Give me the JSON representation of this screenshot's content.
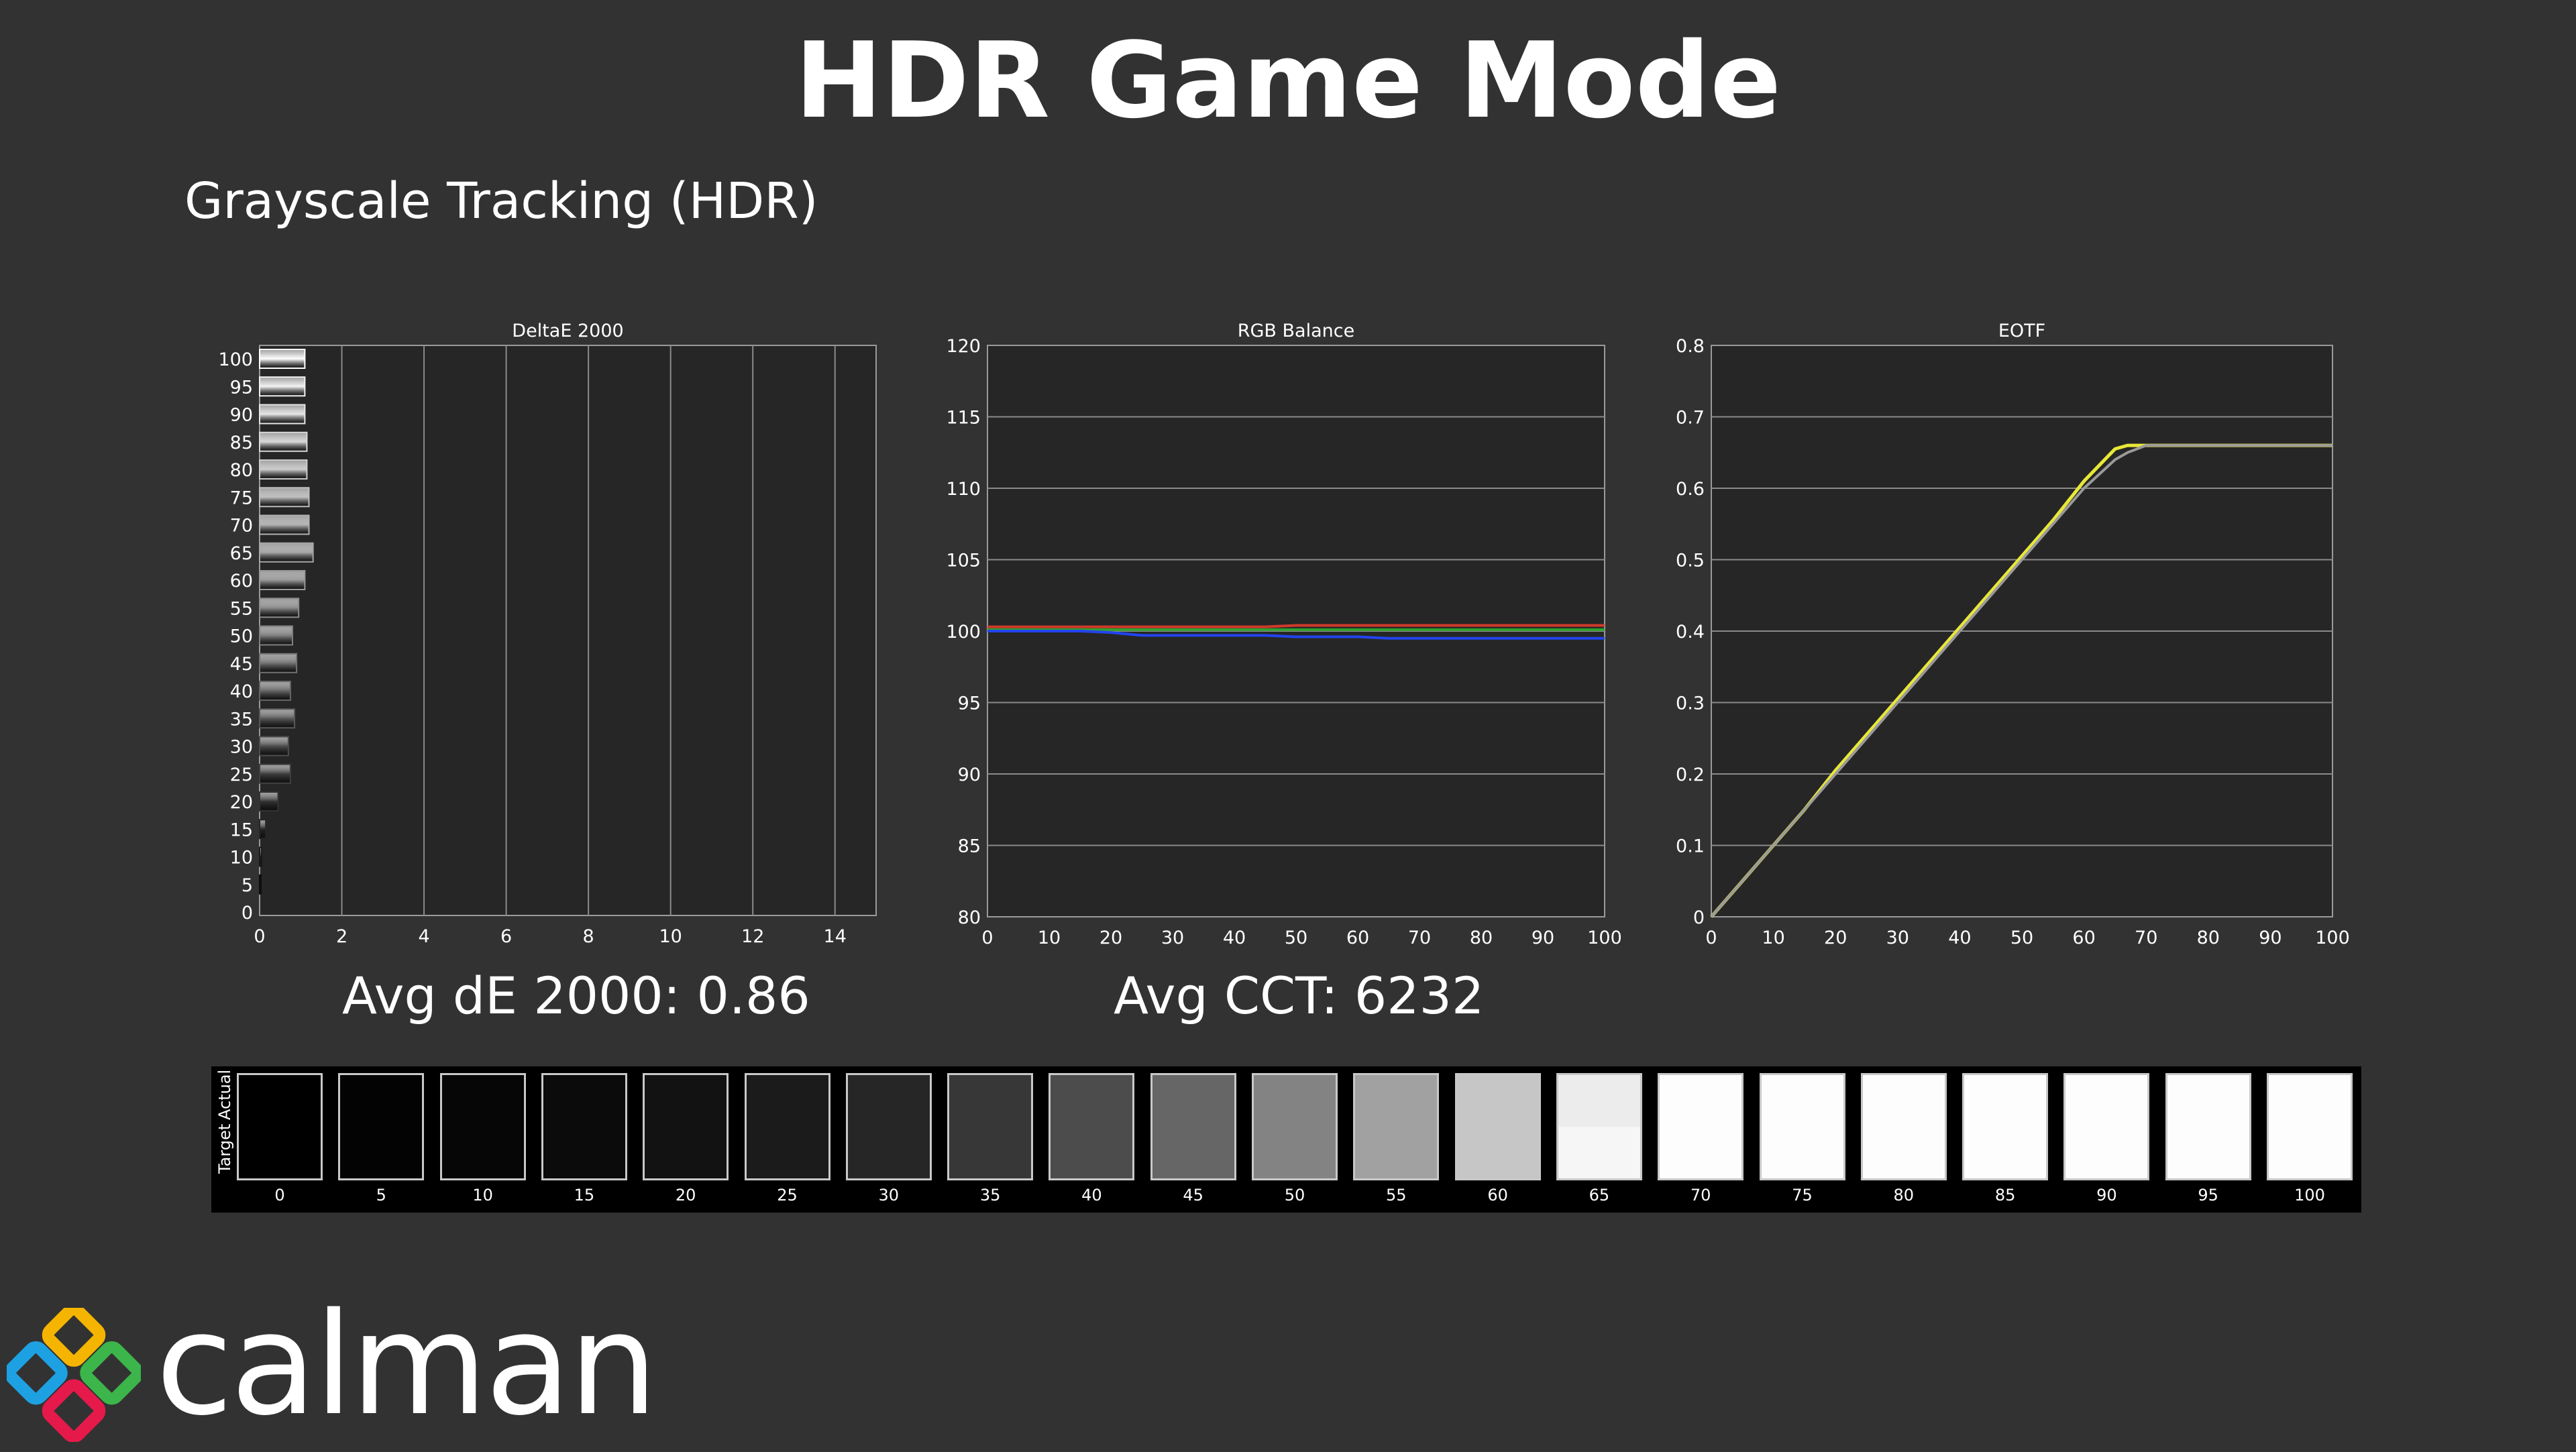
{
  "title": "HDR Game Mode",
  "section_title": "Grayscale Tracking (HDR)",
  "stats": {
    "avg_de": "Avg dE 2000: 0.86",
    "avg_cct": "Avg CCT: 6232"
  },
  "brand": {
    "name": "calman"
  },
  "colors": {
    "background": "#323232",
    "plot_background": "#262626",
    "red": "#d03a2a",
    "green": "#2fa12f",
    "blue": "#2244ee",
    "eotf_actual": "#e8e838",
    "eotf_target": "#9a9a9a"
  },
  "chart_data": [
    {
      "type": "bar",
      "title": "DeltaE 2000",
      "orientation": "horizontal",
      "categories": [
        100,
        95,
        90,
        85,
        80,
        75,
        70,
        65,
        60,
        55,
        50,
        45,
        40,
        35,
        30,
        25,
        20,
        15,
        10,
        5,
        0
      ],
      "values": [
        1.1,
        1.1,
        1.1,
        1.15,
        1.15,
        1.2,
        1.2,
        1.3,
        1.1,
        0.95,
        0.8,
        0.9,
        0.75,
        0.85,
        0.7,
        0.75,
        0.45,
        0.15,
        0.05,
        0.02,
        0.0
      ],
      "xlim": [
        0,
        15
      ],
      "xticks": [
        0,
        2,
        4,
        6,
        8,
        10,
        12,
        14
      ],
      "grid": "vertical"
    },
    {
      "type": "line",
      "title": "RGB Balance",
      "x": [
        0,
        5,
        10,
        15,
        20,
        25,
        30,
        35,
        40,
        45,
        50,
        55,
        60,
        65,
        70,
        75,
        80,
        85,
        90,
        95,
        100
      ],
      "series": [
        {
          "color": "#d03a2a",
          "values": [
            100.3,
            100.3,
            100.3,
            100.3,
            100.3,
            100.3,
            100.3,
            100.3,
            100.3,
            100.3,
            100.4,
            100.4,
            100.4,
            100.4,
            100.4,
            100.4,
            100.4,
            100.4,
            100.4,
            100.4,
            100.4
          ]
        },
        {
          "color": "#2fa12f",
          "values": [
            100.1,
            100.1,
            100.1,
            100.1,
            100.1,
            100.1,
            100.1,
            100.1,
            100.1,
            100.1,
            100.1,
            100.1,
            100.1,
            100.1,
            100.1,
            100.1,
            100.1,
            100.1,
            100.1,
            100.1,
            100.1
          ]
        },
        {
          "color": "#2244ee",
          "values": [
            100.0,
            100.0,
            100.0,
            100.0,
            99.9,
            99.7,
            99.7,
            99.7,
            99.7,
            99.7,
            99.6,
            99.6,
            99.6,
            99.5,
            99.5,
            99.5,
            99.5,
            99.5,
            99.5,
            99.5,
            99.5
          ]
        }
      ],
      "ylim": [
        80,
        120
      ],
      "yticks": [
        80,
        85,
        90,
        95,
        100,
        105,
        110,
        115,
        120
      ],
      "xticks": [
        0,
        10,
        20,
        30,
        40,
        50,
        60,
        70,
        80,
        90,
        100
      ],
      "grid": "horizontal"
    },
    {
      "type": "line",
      "title": "EOTF",
      "x": [
        0,
        5,
        10,
        15,
        20,
        25,
        30,
        35,
        40,
        45,
        50,
        55,
        60,
        65,
        67,
        70,
        75,
        80,
        85,
        90,
        95,
        100
      ],
      "series": [
        {
          "color": "#e8e838",
          "values": [
            0.0,
            0.05,
            0.1,
            0.15,
            0.205,
            0.255,
            0.305,
            0.355,
            0.405,
            0.455,
            0.505,
            0.555,
            0.61,
            0.655,
            0.66,
            0.66,
            0.66,
            0.66,
            0.66,
            0.66,
            0.66,
            0.66
          ]
        },
        {
          "color": "#9a9a9a",
          "values": [
            0.0,
            0.05,
            0.1,
            0.15,
            0.2,
            0.25,
            0.3,
            0.35,
            0.4,
            0.45,
            0.5,
            0.55,
            0.6,
            0.64,
            0.65,
            0.66,
            0.66,
            0.66,
            0.66,
            0.66,
            0.66,
            0.66
          ]
        }
      ],
      "ylim": [
        0,
        0.8
      ],
      "yticks": [
        0,
        0.1,
        0.2,
        0.3,
        0.4,
        0.5,
        0.6,
        0.7,
        0.8
      ],
      "xticks": [
        0,
        10,
        20,
        30,
        40,
        50,
        60,
        70,
        80,
        90,
        100
      ],
      "grid": "horizontal"
    }
  ],
  "swatches": {
    "top_label": "Actual",
    "bottom_label": "Target",
    "items": [
      {
        "label": "0",
        "actual": "#000000",
        "target": "#000000"
      },
      {
        "label": "5",
        "actual": "#030303",
        "target": "#030303"
      },
      {
        "label": "10",
        "actual": "#060606",
        "target": "#060606"
      },
      {
        "label": "15",
        "actual": "#0b0b0b",
        "target": "#0b0b0b"
      },
      {
        "label": "20",
        "actual": "#121212",
        "target": "#121212"
      },
      {
        "label": "25",
        "actual": "#1b1b1b",
        "target": "#1b1b1b"
      },
      {
        "label": "30",
        "actual": "#262626",
        "target": "#262626"
      },
      {
        "label": "35",
        "actual": "#373737",
        "target": "#373737"
      },
      {
        "label": "40",
        "actual": "#4c4c4c",
        "target": "#4c4c4c"
      },
      {
        "label": "45",
        "actual": "#666666",
        "target": "#666666"
      },
      {
        "label": "50",
        "actual": "#838383",
        "target": "#838383"
      },
      {
        "label": "55",
        "actual": "#a1a1a1",
        "target": "#a1a1a1"
      },
      {
        "label": "60",
        "actual": "#c6c6c6",
        "target": "#c6c6c6"
      },
      {
        "label": "65",
        "actual": "#ececec",
        "target": "#f6f6f6"
      },
      {
        "label": "70",
        "actual": "#fdfdfd",
        "target": "#fdfdfd"
      },
      {
        "label": "75",
        "actual": "#fdfdfd",
        "target": "#fdfdfd"
      },
      {
        "label": "80",
        "actual": "#fdfdfd",
        "target": "#fdfdfd"
      },
      {
        "label": "85",
        "actual": "#fdfdfd",
        "target": "#fdfdfd"
      },
      {
        "label": "90",
        "actual": "#fdfdfd",
        "target": "#fdfdfd"
      },
      {
        "label": "95",
        "actual": "#fdfdfd",
        "target": "#fdfdfd"
      },
      {
        "label": "100",
        "actual": "#fdfdfd",
        "target": "#fdfdfd"
      }
    ]
  }
}
